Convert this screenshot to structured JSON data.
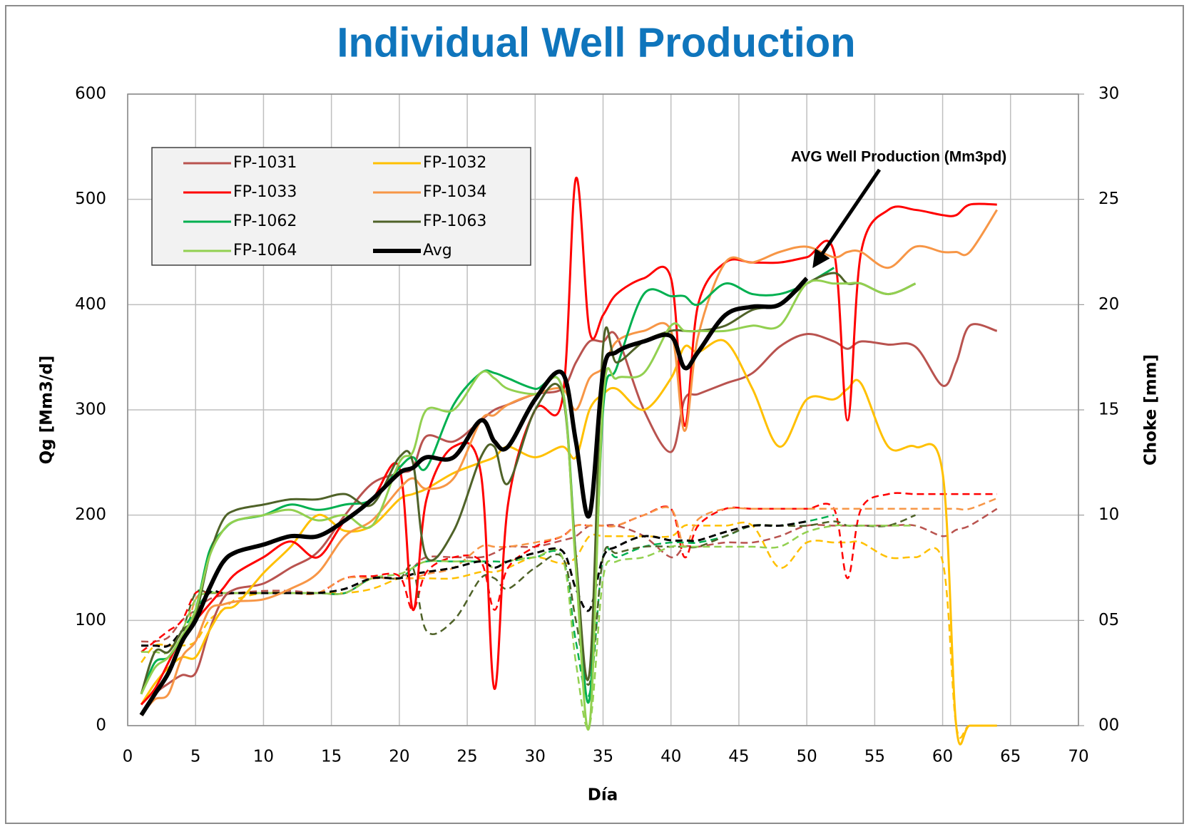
{
  "chart_data": {
    "type": "line",
    "title": "Individual  Well Production",
    "xlabel": "Día",
    "ylabel": "Qg [Mm3/d]",
    "y2label": "Choke [mm]",
    "annotation": "AVG Well Production (Mm3pd)",
    "xlim": [
      0,
      70
    ],
    "xticks": [
      0,
      5,
      10,
      15,
      20,
      25,
      30,
      35,
      40,
      45,
      50,
      55,
      60,
      65,
      70
    ],
    "ylim": [
      0,
      600
    ],
    "yticks": [
      0,
      100,
      200,
      300,
      400,
      500,
      600
    ],
    "y2lim": [
      0,
      30
    ],
    "y2ticks": [
      {
        "value": 0,
        "label": "00"
      },
      {
        "value": 5,
        "label": "05"
      },
      10,
      15,
      20,
      25,
      30
    ],
    "grid": true,
    "x": [
      1,
      2,
      3,
      4,
      5,
      6,
      7,
      8,
      10,
      12,
      14,
      16,
      18,
      20,
      21,
      22,
      24,
      26,
      27,
      28,
      30,
      32,
      33,
      34,
      35,
      36,
      38,
      40,
      41,
      42,
      44,
      46,
      48,
      50,
      52,
      53,
      54,
      56,
      58,
      60,
      61,
      62,
      64
    ],
    "series": [
      {
        "name": "FP-1031",
        "color": "#b9534f",
        "values": [
          10,
          30,
          40,
          48,
          50,
          90,
          120,
          130,
          135,
          150,
          165,
          200,
          230,
          240,
          245,
          275,
          270,
          290,
          300,
          305,
          315,
          320,
          345,
          365,
          365,
          370,
          300,
          260,
          310,
          315,
          325,
          335,
          360,
          372,
          365,
          358,
          365,
          362,
          360,
          323,
          345,
          380,
          375
        ],
        "choke": [
          4,
          4,
          4.2,
          5,
          5.5,
          6,
          6.2,
          6.3,
          6.4,
          6.4,
          6.3,
          6.3,
          7,
          7,
          7.5,
          8,
          8,
          8,
          8.2,
          8.5,
          8.5,
          8.8,
          9,
          9.5,
          9.5,
          9.5,
          9,
          8,
          8.5,
          8.5,
          8.7,
          8.7,
          9,
          9.5,
          9.5,
          9.5,
          9.5,
          9.5,
          9.5,
          9,
          9.3,
          9.5,
          10.3
        ]
      },
      {
        "name": "FP-1032",
        "color": "#ffc000",
        "values": [
          20,
          40,
          55,
          65,
          65,
          90,
          110,
          115,
          145,
          170,
          200,
          185,
          190,
          215,
          220,
          225,
          240,
          250,
          255,
          265,
          255,
          265,
          255,
          300,
          315,
          320,
          300,
          330,
          360,
          355,
          365,
          320,
          265,
          310,
          310,
          320,
          325,
          265,
          265,
          240,
          0,
          0,
          0
        ],
        "choke": [
          3,
          3.8,
          3.8,
          3.8,
          4,
          5,
          5.5,
          6,
          6.3,
          6.3,
          6.3,
          6.3,
          6.5,
          7,
          7,
          7,
          7,
          7.3,
          7.3,
          7.5,
          8,
          7.7,
          8,
          9,
          9,
          9,
          9,
          9,
          9.5,
          9.5,
          9.5,
          9.5,
          7.5,
          8.7,
          8.7,
          8.7,
          8.7,
          8,
          8,
          7.8,
          0,
          0,
          0
        ]
      },
      {
        "name": "FP-1033",
        "color": "#ff0000",
        "values": [
          20,
          35,
          60,
          85,
          100,
          115,
          130,
          145,
          160,
          175,
          160,
          195,
          215,
          245,
          110,
          215,
          265,
          240,
          35,
          210,
          300,
          310,
          520,
          375,
          390,
          410,
          425,
          425,
          285,
          400,
          440,
          440,
          440,
          445,
          450,
          290,
          450,
          490,
          490,
          485,
          485,
          495,
          495
        ],
        "choke": [
          3.5,
          4,
          4.5,
          5,
          6.3,
          6.3,
          6.3,
          6.3,
          6.3,
          6.3,
          6.3,
          7,
          7.1,
          7.1,
          5.5,
          7.3,
          8,
          7.8,
          5.5,
          7.5,
          8.5,
          9,
          9.5,
          9.5,
          9.5,
          9.5,
          10,
          10.3,
          8,
          9.5,
          10.3,
          10.3,
          10.3,
          10.3,
          10.3,
          7,
          10.3,
          11,
          11,
          11,
          11,
          11,
          11
        ]
      },
      {
        "name": "FP-1034",
        "color": "#f79646",
        "values": [
          10,
          25,
          30,
          65,
          80,
          110,
          115,
          118,
          120,
          130,
          145,
          180,
          195,
          225,
          235,
          225,
          235,
          290,
          295,
          305,
          315,
          320,
          300,
          330,
          340,
          365,
          375,
          375,
          280,
          370,
          440,
          440,
          450,
          455,
          445,
          450,
          450,
          435,
          455,
          450,
          450,
          450,
          490
        ],
        "choke": [
          3.8,
          3.8,
          3.8,
          3.8,
          6,
          6.3,
          6.3,
          6.3,
          6.3,
          6.3,
          6.3,
          7,
          7,
          7,
          7,
          7.2,
          7.5,
          8.5,
          8.5,
          8.5,
          8.7,
          9,
          9.5,
          9.5,
          9.5,
          9.5,
          10,
          10.3,
          8.5,
          9.8,
          10.3,
          10.3,
          10.3,
          10.3,
          10.3,
          10.3,
          10.3,
          10.3,
          10.3,
          10.3,
          10.3,
          10.3,
          10.8
        ]
      },
      {
        "name": "FP-1062",
        "color": "#00b050",
        "values": [
          30,
          60,
          65,
          85,
          110,
          165,
          185,
          195,
          200,
          210,
          205,
          210,
          215,
          245,
          255,
          245,
          305,
          335,
          335,
          330,
          320,
          320,
          160,
          25,
          300,
          340,
          410,
          408,
          408,
          400,
          420,
          410,
          410,
          420,
          435,
          null,
          null,
          null,
          null,
          null,
          null,
          null,
          null
        ],
        "choke": [
          3.8,
          3.8,
          3.8,
          4.5,
          5.5,
          6.3,
          6.3,
          6.3,
          6.3,
          6.3,
          6.3,
          6.3,
          7,
          7,
          7.5,
          7.8,
          7.8,
          7.8,
          7.8,
          7.8,
          8,
          8,
          4,
          1.5,
          8,
          8,
          8.5,
          8.7,
          8.7,
          8.7,
          9,
          9.5,
          9.5,
          9.7,
          10,
          null,
          null,
          null,
          null,
          null,
          null,
          null,
          null
        ]
      },
      {
        "name": "FP-1063",
        "color": "#4f6228",
        "values": [
          30,
          70,
          70,
          90,
          105,
          160,
          195,
          205,
          210,
          215,
          215,
          220,
          210,
          255,
          250,
          160,
          185,
          255,
          265,
          230,
          300,
          315,
          160,
          50,
          360,
          345,
          365,
          375,
          375,
          375,
          380,
          395,
          400,
          420,
          430,
          420,
          420,
          410,
          420,
          null,
          null,
          null,
          null
        ],
        "choke": [
          3.8,
          3.8,
          3.8,
          4.5,
          6.3,
          6.3,
          6.3,
          6.3,
          6.3,
          6.3,
          6.3,
          6.3,
          7,
          7,
          7.5,
          4.5,
          5,
          7,
          7,
          6.5,
          7.5,
          8,
          5,
          2,
          8,
          8.2,
          8.5,
          8.5,
          8.5,
          8.5,
          9,
          9.5,
          9.5,
          9.5,
          9.7,
          9.5,
          9.5,
          9.5,
          10,
          null,
          null,
          null,
          null
        ]
      },
      {
        "name": "FP-1064",
        "color": "#92d050",
        "values": [
          30,
          55,
          65,
          85,
          110,
          160,
          185,
          195,
          200,
          205,
          195,
          200,
          190,
          250,
          260,
          300,
          300,
          335,
          330,
          320,
          315,
          320,
          150,
          0,
          310,
          330,
          335,
          380,
          375,
          375,
          375,
          380,
          380,
          420,
          420,
          420,
          420,
          410,
          420,
          null,
          null,
          null,
          null
        ],
        "choke": [
          3.5,
          3.5,
          3.5,
          4.5,
          6,
          6.3,
          6.3,
          6.3,
          6.3,
          6.3,
          6.3,
          6.3,
          7,
          7.2,
          7.5,
          7.8,
          7.8,
          7.8,
          7.5,
          7.8,
          8,
          8,
          3,
          0,
          7,
          7.8,
          8,
          8.5,
          8.5,
          8.5,
          8.5,
          8.5,
          8.5,
          9.2,
          9.5,
          9.5,
          9.5,
          9.5,
          9.5,
          null,
          null,
          null,
          null
        ]
      },
      {
        "name": "Avg",
        "color": "#000000",
        "values": [
          10,
          30,
          50,
          80,
          100,
          130,
          155,
          165,
          172,
          180,
          180,
          195,
          215,
          240,
          245,
          255,
          255,
          290,
          270,
          265,
          310,
          335,
          270,
          200,
          335,
          355,
          365,
          370,
          340,
          355,
          390,
          398,
          400,
          425,
          null,
          null,
          null,
          null,
          null,
          null,
          null,
          null,
          null
        ],
        "choke": [
          3.8,
          3.8,
          3.8,
          4.5,
          5,
          6.3,
          6.3,
          6.3,
          6.3,
          6.3,
          6.3,
          6.5,
          7,
          7,
          7.2,
          7.3,
          7.5,
          7.8,
          7.5,
          7.8,
          8.2,
          8.3,
          6.5,
          5.5,
          8,
          8.5,
          9,
          8.8,
          8.8,
          8.8,
          9.2,
          9.5,
          9.5,
          9.7,
          null,
          null,
          null,
          null,
          null,
          null,
          null,
          null,
          null
        ]
      }
    ]
  }
}
